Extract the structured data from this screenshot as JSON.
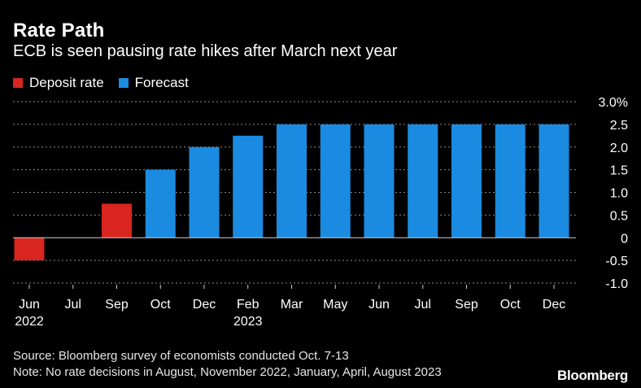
{
  "header": {
    "title": "Rate Path",
    "subtitle": "ECB is seen pausing rate hikes after March next year"
  },
  "legend": [
    {
      "label": "Deposit rate",
      "color": "#d8251f"
    },
    {
      "label": "Forecast",
      "color": "#1a8be0"
    }
  ],
  "chart_data": {
    "type": "bar",
    "title": "Rate Path",
    "subtitle": "ECB is seen pausing rate hikes after March next year",
    "xlabel": "",
    "ylabel": "",
    "ylim": [
      -1.0,
      3.0
    ],
    "yticks": [
      "3.0%",
      "2.5",
      "2.0",
      "1.5",
      "1.0",
      "0.5",
      "0",
      "-0.5",
      "-1.0"
    ],
    "ytick_values": [
      3.0,
      2.5,
      2.0,
      1.5,
      1.0,
      0.5,
      0,
      -0.5,
      -1.0
    ],
    "categories": [
      "Jun",
      "Jul",
      "Sep",
      "Oct",
      "Dec",
      "Feb",
      "Mar",
      "May",
      "Jun",
      "Jul",
      "Sep",
      "Oct",
      "Dec"
    ],
    "year_labels": [
      "2022",
      "",
      "",
      "",
      "",
      "2023",
      "",
      "",
      "",
      "",
      "",
      "",
      ""
    ],
    "series": [
      {
        "name": "Deposit rate",
        "color": "#d8251f",
        "values": [
          -0.5,
          null,
          0.75,
          null,
          null,
          null,
          null,
          null,
          null,
          null,
          null,
          null,
          null
        ]
      },
      {
        "name": "Forecast",
        "color": "#1a8be0",
        "values": [
          null,
          null,
          null,
          1.5,
          2.0,
          2.25,
          2.5,
          2.5,
          2.5,
          2.5,
          2.5,
          2.5,
          2.5
        ]
      }
    ],
    "grid": true,
    "legend_position": "top-left"
  },
  "footer": {
    "source": "Source: Bloomberg survey of economists conducted Oct. 7-13",
    "note": "Note: No rate decisions in August, November 2022, January, April, August 2023"
  },
  "brand": "Bloomberg"
}
